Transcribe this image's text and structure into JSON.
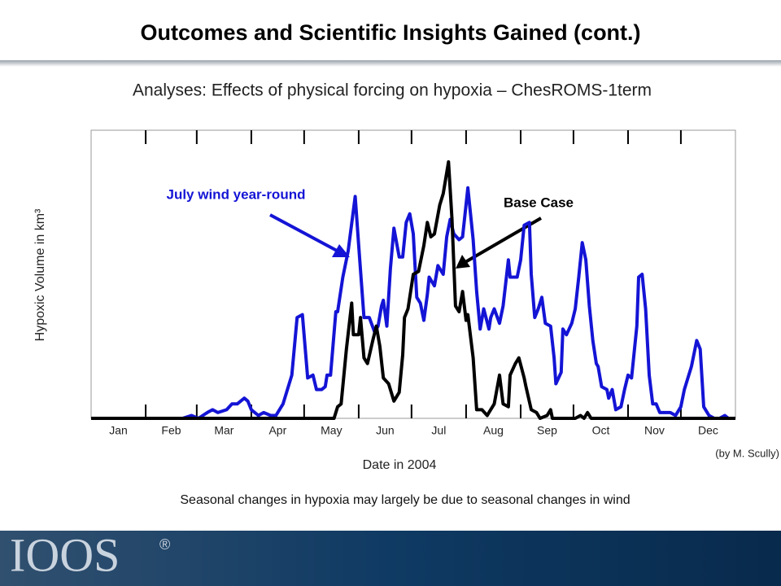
{
  "header": {
    "title": "Outcomes and Scientific Insights Gained (cont.)"
  },
  "chart_data": {
    "type": "line",
    "title": "Analyses: Effects of physical forcing on hypoxia – ChesROMS-1term",
    "y_label": "Hypoxic Volume in km³",
    "x_label": "Date in 2004",
    "categories": [
      "Jan",
      "Feb",
      "Mar",
      "Apr",
      "May",
      "Jun",
      "Jul",
      "Aug",
      "Sep",
      "Oct",
      "Nov",
      "Dec"
    ],
    "xlim": [
      0,
      366
    ],
    "xticks": [
      31,
      60,
      91,
      121,
      152,
      182,
      213,
      244,
      274,
      305,
      335
    ],
    "ylim": [
      0,
      100
    ],
    "series": [
      {
        "name": "July wind year-round",
        "color": "#1414d6",
        "x": [
          0,
          52,
          57,
          61,
          66,
          69,
          72,
          77,
          80,
          83,
          87,
          89,
          91,
          95,
          98,
          102,
          105,
          109,
          114,
          117,
          120,
          123,
          126,
          128,
          131,
          133,
          134,
          136,
          139,
          140,
          143,
          146,
          150,
          152,
          155,
          158,
          161,
          163,
          165,
          166,
          168,
          170,
          172,
          175,
          177,
          179,
          181,
          183,
          185,
          187,
          189,
          191,
          192,
          195,
          197,
          200,
          202,
          204,
          206,
          209,
          211,
          214,
          217,
          219,
          221,
          223,
          226,
          227,
          229,
          232,
          234,
          237,
          238,
          242,
          244,
          246,
          249,
          250,
          252,
          254,
          256,
          258,
          261,
          263,
          264,
          267,
          268,
          270,
          273,
          275,
          277,
          279,
          281,
          283,
          285,
          287,
          288,
          290,
          293,
          294,
          296,
          298,
          301,
          303,
          305,
          307,
          310,
          311,
          313,
          315,
          317,
          319,
          321,
          323,
          326,
          329,
          332,
          335,
          337,
          341,
          344,
          346,
          348,
          351,
          354,
          357,
          360,
          362,
          366
        ],
        "values": [
          0,
          0,
          1,
          0,
          2,
          3,
          2,
          3,
          5,
          5,
          7,
          6,
          3,
          1,
          2,
          1,
          1,
          5,
          15,
          35,
          36,
          14,
          15,
          10,
          10,
          11,
          15,
          15,
          37,
          37,
          49,
          58,
          77,
          60,
          35,
          35,
          30,
          32,
          39,
          41,
          32,
          52,
          66,
          56,
          56,
          68,
          71,
          64,
          42,
          40,
          34,
          43,
          49,
          46,
          53,
          50,
          63,
          69,
          64,
          62,
          63,
          80,
          62,
          44,
          31,
          38,
          31,
          35,
          38,
          33,
          39,
          55,
          49,
          49,
          55,
          67,
          68,
          50,
          35,
          38,
          42,
          33,
          32,
          21,
          12,
          16,
          31,
          29,
          33,
          38,
          49,
          61,
          55,
          39,
          27,
          19,
          18,
          11,
          10,
          7,
          10,
          3,
          4,
          10,
          15,
          14,
          32,
          49,
          50,
          38,
          15,
          5,
          5,
          2,
          2,
          2,
          1,
          4,
          10,
          18,
          27,
          24,
          4,
          1,
          0,
          0,
          1,
          0,
          0
        ]
      },
      {
        "name": "Base Case",
        "color": "#000000",
        "x": [
          0,
          138,
          140,
          142,
          145,
          148,
          149,
          152,
          153,
          155,
          157,
          160,
          162,
          164,
          166,
          169,
          172,
          175,
          177,
          178,
          180,
          183,
          186,
          189,
          191,
          193,
          195,
          198,
          200,
          203,
          205,
          207,
          209,
          211,
          213,
          214,
          217,
          219,
          222,
          225,
          226,
          229,
          232,
          234,
          237,
          238,
          241,
          243,
          246,
          247,
          250,
          253,
          255,
          259,
          261,
          262,
          275,
          278,
          280,
          282,
          284,
          366
        ],
        "values": [
          0,
          0,
          4,
          5,
          24,
          40,
          29,
          29,
          35,
          21,
          19,
          27,
          32,
          25,
          14,
          12,
          6,
          9,
          22,
          35,
          38,
          50,
          51,
          60,
          68,
          63,
          64,
          74,
          78,
          89,
          69,
          39,
          37,
          44,
          34,
          36,
          21,
          3,
          3,
          1,
          2,
          5,
          15,
          5,
          4,
          15,
          19,
          21,
          14,
          11,
          3,
          2,
          0,
          1,
          3,
          0,
          0,
          1,
          0,
          2,
          0,
          0
        ]
      }
    ],
    "credit": "(by M. Scully)",
    "caption": "Seasonal changes in hypoxia may largely be due to seasonal changes in wind"
  },
  "footer": {
    "logo": "IOOS",
    "mark": "®"
  }
}
